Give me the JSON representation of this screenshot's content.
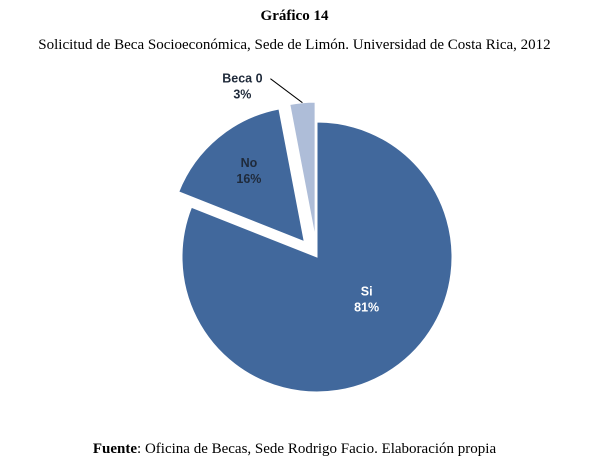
{
  "chart_data": {
    "type": "pie",
    "title": "Gráfico 14",
    "subtitle": "Solicitud de Beca Socioeconómica, Sede de Limón. Universidad de Costa Rica, 2012",
    "slices": [
      {
        "label": "Si",
        "value": 81,
        "value_label": "81%",
        "color": "#41689c",
        "exploded": false,
        "label_color": "#ffffff"
      },
      {
        "label": "No",
        "value": 16,
        "value_label": "16%",
        "color": "#41689c",
        "exploded": true,
        "label_color": "#1f2a3a"
      },
      {
        "label": "Beca 0",
        "value": 3,
        "value_label": "3%",
        "color": "#aebdd8",
        "exploded": true,
        "label_color": "#1f2a3a"
      }
    ]
  },
  "source": {
    "prefix": "Fuente",
    "text": ": Oficina de Becas, Sede Rodrigo Facio. Elaboración propia"
  }
}
